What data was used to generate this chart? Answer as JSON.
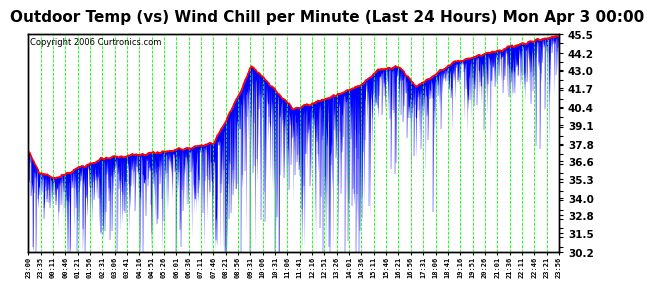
{
  "title": "Outdoor Temp (vs) Wind Chill per Minute (Last 24 Hours) Mon Apr 3 00:00",
  "copyright": "Copyright 2006 Curtronics.com",
  "ylabel_right_ticks": [
    45.5,
    44.2,
    43.0,
    41.7,
    40.4,
    39.1,
    37.8,
    36.6,
    35.3,
    34.0,
    32.8,
    31.5,
    30.2
  ],
  "ymin": 30.2,
  "ymax": 45.5,
  "background_color": "#ffffff",
  "plot_bg_color": "#ffffff",
  "grid_color": "#00ff00",
  "bar_color": "#0000ff",
  "line_color": "#ff0000",
  "title_fontsize": 11,
  "x_labels": [
    "23:00",
    "23:35",
    "00:11",
    "00:46",
    "01:21",
    "01:56",
    "02:31",
    "03:06",
    "03:41",
    "04:16",
    "04:51",
    "05:26",
    "06:01",
    "06:36",
    "07:11",
    "07:46",
    "08:21",
    "08:56",
    "09:31",
    "10:06",
    "10:31",
    "11:06",
    "11:41",
    "12:16",
    "12:51",
    "13:26",
    "14:01",
    "14:36",
    "15:11",
    "15:46",
    "16:21",
    "16:56",
    "17:31",
    "18:06",
    "18:41",
    "19:16",
    "19:51",
    "20:26",
    "21:01",
    "21:36",
    "22:11",
    "22:46",
    "23:21",
    "23:56"
  ],
  "n_points": 1440
}
